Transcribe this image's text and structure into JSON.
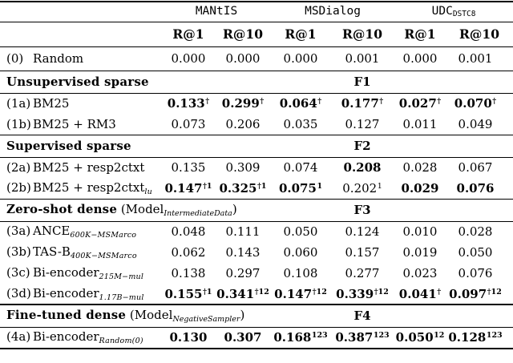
{
  "page": {
    "background": "#ffffff",
    "text_color": "#000000"
  },
  "table": {
    "dataset_groups": [
      {
        "name": "MANtIS",
        "sub": ""
      },
      {
        "name": "MSDialog",
        "sub": ""
      },
      {
        "name": "UDC",
        "sub": "DSTC8"
      }
    ],
    "metric_headers": [
      "R@1",
      "R@10",
      "R@1",
      "R@10",
      "R@1",
      "R@10"
    ],
    "rows": [
      {
        "type": "data",
        "tall": true,
        "id": "(0)",
        "label": "Random",
        "label_sub": "",
        "cells": [
          {
            "v": "0.000",
            "sup": "",
            "b": false
          },
          {
            "v": "0.000",
            "sup": "",
            "b": false
          },
          {
            "v": "0.000",
            "sup": "",
            "b": false
          },
          {
            "v": "0.001",
            "sup": "",
            "b": false
          },
          {
            "v": "0.000",
            "sup": "",
            "b": false
          },
          {
            "v": "0.001",
            "sup": "",
            "b": false
          }
        ]
      },
      {
        "type": "section",
        "title": "Unsupervised sparse",
        "model": "",
        "model_sub": "",
        "fold": "F1",
        "thick": false
      },
      {
        "type": "data",
        "id": "(1a)",
        "label": "BM25",
        "label_sub": "",
        "cells": [
          {
            "v": "0.133",
            "sup": "†",
            "b": true
          },
          {
            "v": "0.299",
            "sup": "†",
            "b": true
          },
          {
            "v": "0.064",
            "sup": "†",
            "b": true
          },
          {
            "v": "0.177",
            "sup": "†",
            "b": true
          },
          {
            "v": "0.027",
            "sup": "†",
            "b": true
          },
          {
            "v": "0.070",
            "sup": "†",
            "b": true
          }
        ]
      },
      {
        "type": "data",
        "id": "(1b)",
        "label": "BM25 + RM3",
        "label_sub": "",
        "cells": [
          {
            "v": "0.073",
            "sup": "",
            "b": false
          },
          {
            "v": "0.206",
            "sup": "",
            "b": false
          },
          {
            "v": "0.035",
            "sup": "",
            "b": false
          },
          {
            "v": "0.127",
            "sup": "",
            "b": false
          },
          {
            "v": "0.011",
            "sup": "",
            "b": false
          },
          {
            "v": "0.049",
            "sup": "",
            "b": false
          }
        ]
      },
      {
        "type": "section",
        "title": "Supervised sparse",
        "model": "",
        "model_sub": "",
        "fold": "F2",
        "thick": false
      },
      {
        "type": "data",
        "id": "(2a)",
        "label": "BM25 + resp2ctxt",
        "label_sub": "",
        "cells": [
          {
            "v": "0.135",
            "sup": "",
            "b": false
          },
          {
            "v": "0.309",
            "sup": "",
            "b": false
          },
          {
            "v": "0.074",
            "sup": "",
            "b": false
          },
          {
            "v": "0.208",
            "sup": "",
            "b": true
          },
          {
            "v": "0.028",
            "sup": "",
            "b": false
          },
          {
            "v": "0.067",
            "sup": "",
            "b": false
          }
        ]
      },
      {
        "type": "data",
        "id": "(2b)",
        "label": "BM25 + resp2ctxt",
        "label_sub": "lu",
        "cells": [
          {
            "v": "0.147",
            "sup": "†1",
            "b": true
          },
          {
            "v": "0.325",
            "sup": "†1",
            "b": true
          },
          {
            "v": "0.075",
            "sup": "1",
            "b": true
          },
          {
            "v": "0.202",
            "sup": "1",
            "b": false
          },
          {
            "v": "0.029",
            "sup": "",
            "b": true
          },
          {
            "v": "0.076",
            "sup": "",
            "b": true
          }
        ]
      },
      {
        "type": "section",
        "title": "Zero-shot dense",
        "model": "Model",
        "model_sub": "IntermediateData",
        "fold": "F3",
        "thick": false
      },
      {
        "type": "data",
        "id": "(3a)",
        "label": "ANCE",
        "label_sub": "600K−MSMarco",
        "cells": [
          {
            "v": "0.048",
            "sup": "",
            "b": false
          },
          {
            "v": "0.111",
            "sup": "",
            "b": false
          },
          {
            "v": "0.050",
            "sup": "",
            "b": false
          },
          {
            "v": "0.124",
            "sup": "",
            "b": false
          },
          {
            "v": "0.010",
            "sup": "",
            "b": false
          },
          {
            "v": "0.028",
            "sup": "",
            "b": false
          }
        ]
      },
      {
        "type": "data",
        "id": "(3b)",
        "label": "TAS-B",
        "label_sub": "400K−MSMarco",
        "cells": [
          {
            "v": "0.062",
            "sup": "",
            "b": false
          },
          {
            "v": "0.143",
            "sup": "",
            "b": false
          },
          {
            "v": "0.060",
            "sup": "",
            "b": false
          },
          {
            "v": "0.157",
            "sup": "",
            "b": false
          },
          {
            "v": "0.019",
            "sup": "",
            "b": false
          },
          {
            "v": "0.050",
            "sup": "",
            "b": false
          }
        ]
      },
      {
        "type": "data",
        "id": "(3c)",
        "label": "Bi-encoder",
        "label_sub": "215M−mul",
        "cells": [
          {
            "v": "0.138",
            "sup": "",
            "b": false
          },
          {
            "v": "0.297",
            "sup": "",
            "b": false
          },
          {
            "v": "0.108",
            "sup": "",
            "b": false
          },
          {
            "v": "0.277",
            "sup": "",
            "b": false
          },
          {
            "v": "0.023",
            "sup": "",
            "b": false
          },
          {
            "v": "0.076",
            "sup": "",
            "b": false
          }
        ]
      },
      {
        "type": "data",
        "id": "(3d)",
        "label": "Bi-encoder",
        "label_sub": "1.17B−mul",
        "cells": [
          {
            "v": "0.155",
            "sup": "†1",
            "b": true
          },
          {
            "v": "0.341",
            "sup": "†12",
            "b": true
          },
          {
            "v": "0.147",
            "sup": "†12",
            "b": true
          },
          {
            "v": "0.339",
            "sup": "†12",
            "b": true
          },
          {
            "v": "0.041",
            "sup": "†",
            "b": true
          },
          {
            "v": "0.097",
            "sup": "†12",
            "b": true
          }
        ]
      },
      {
        "type": "section",
        "title": "Fine-tuned dense",
        "model": "Model",
        "model_sub": "NegativeSampler",
        "fold": "F4",
        "thick": true
      },
      {
        "type": "data",
        "last": true,
        "id": "(4a)",
        "label": "Bi-encoder",
        "label_sub": "Random(0)",
        "cells": [
          {
            "v": "0.130",
            "sup": "",
            "b": true
          },
          {
            "v": "0.307",
            "sup": "",
            "b": true
          },
          {
            "v": "0.168",
            "sup": "123",
            "b": true
          },
          {
            "v": "0.387",
            "sup": "123",
            "b": true
          },
          {
            "v": "0.050",
            "sup": "12",
            "b": true
          },
          {
            "v": "0.128",
            "sup": "123",
            "b": true
          }
        ]
      }
    ]
  }
}
